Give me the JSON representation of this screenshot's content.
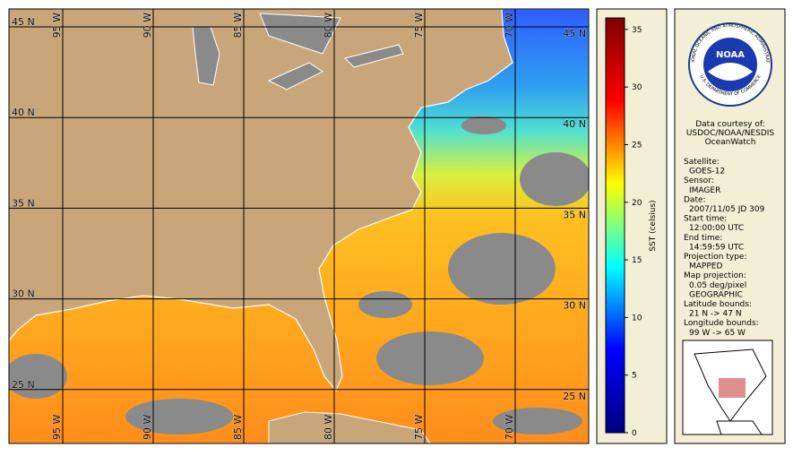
{
  "map": {
    "lat_labels": [
      "45 N",
      "40 N",
      "35 N",
      "30 N",
      "25 N"
    ],
    "lon_labels": [
      "95 W",
      "90 W",
      "85 W",
      "80 W",
      "75 W",
      "70 W"
    ]
  },
  "colorbar": {
    "label": "SST (celsius)",
    "lim": [
      0,
      36
    ],
    "ticks": [
      0,
      5,
      10,
      15,
      20,
      25,
      30,
      35
    ],
    "colors": [
      "#00007f",
      "#0000ff",
      "#00ffff",
      "#ffff00",
      "#ff0000",
      "#7f0000"
    ]
  },
  "logo": {
    "name": "NOAA",
    "ring_top": "NATIONAL OCEANIC AND ATMOSPHERIC ADMINISTRATION",
    "ring_bottom": "U.S. DEPARTMENT OF COMMERCE"
  },
  "info": {
    "credit": [
      "Data courtesy of:",
      "USDOC/NOAA/NESDIS",
      "OceanWatch"
    ],
    "fields": [
      {
        "label": "Satellite:",
        "value": "GOES-12"
      },
      {
        "label": "Sensor:",
        "value": "IMAGER"
      },
      {
        "label": "Date:",
        "value": "2007/11/05 JD 309"
      },
      {
        "label": "Start time:",
        "value": "12:00:00 UTC"
      },
      {
        "label": "End time:",
        "value": "14:59:59 UTC"
      },
      {
        "label": "Projection type:",
        "value": "MAPPED"
      },
      {
        "label": "Map projection:",
        "value": "0.05 deg/pixel",
        "value2": "GEOGRAPHIC"
      },
      {
        "label": "Latitude bounds:",
        "value": "21 N -> 47 N"
      },
      {
        "label": "Longitude bounds:",
        "value": "99 W -> 65 W"
      }
    ]
  }
}
